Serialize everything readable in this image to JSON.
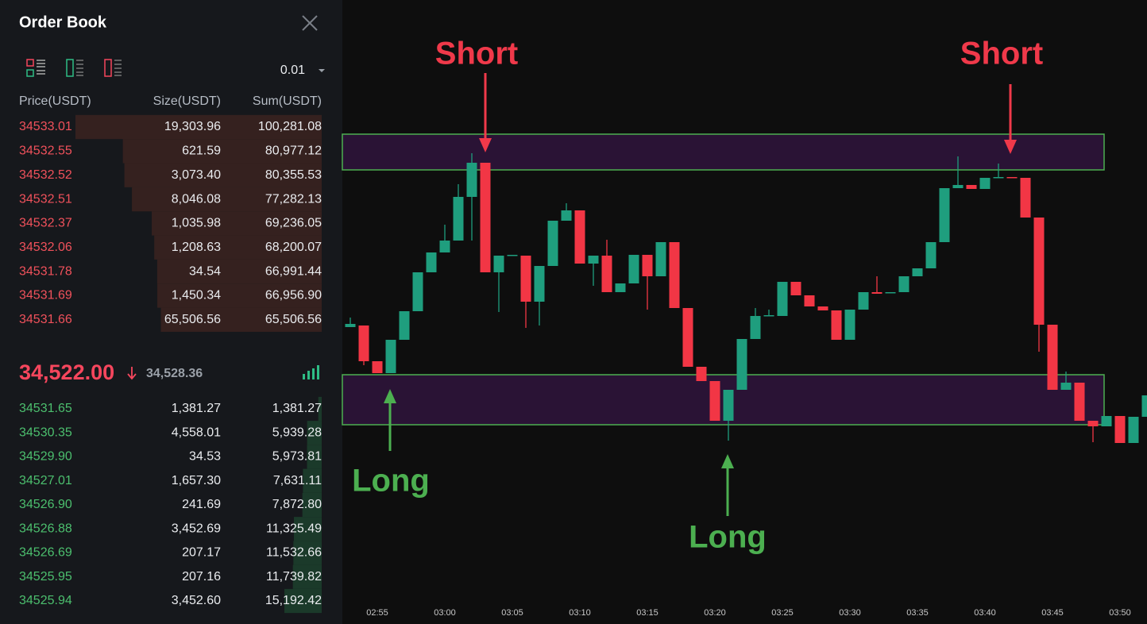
{
  "order_book": {
    "title": "Order Book",
    "precision": "0.01",
    "headers": [
      "Price(USDT)",
      "Size(USDT)",
      "Sum(USDT)"
    ],
    "asks": [
      [
        "34533.01",
        "19,303.96",
        "100,281.08"
      ],
      [
        "34532.55",
        "621.59",
        "80,977.12"
      ],
      [
        "34532.52",
        "3,073.40",
        "80,355.53"
      ],
      [
        "34532.51",
        "8,046.08",
        "77,282.13"
      ],
      [
        "34532.37",
        "1,035.98",
        "69,236.05"
      ],
      [
        "34532.06",
        "1,208.63",
        "68,200.07"
      ],
      [
        "34531.78",
        "34.54",
        "66,991.44"
      ],
      [
        "34531.69",
        "1,450.34",
        "66,956.90"
      ],
      [
        "34531.66",
        "65,506.56",
        "65,506.56"
      ]
    ],
    "last_price": "34,522.00",
    "mark_price": "34,528.36",
    "bids": [
      [
        "34531.65",
        "1,381.27",
        "1,381.27"
      ],
      [
        "34530.35",
        "4,558.01",
        "5,939.28"
      ],
      [
        "34529.90",
        "34.53",
        "5,973.81"
      ],
      [
        "34527.01",
        "1,657.30",
        "7,631.11"
      ],
      [
        "34526.90",
        "241.69",
        "7,872.80"
      ],
      [
        "34526.88",
        "3,452.69",
        "11,325.49"
      ],
      [
        "34526.69",
        "207.17",
        "11,532.66"
      ],
      [
        "34525.95",
        "207.16",
        "11,739.82"
      ],
      [
        "34525.94",
        "3,452.60",
        "15,192.42"
      ]
    ]
  },
  "chart_data": {
    "type": "candlestick",
    "categories": [
      null,
      null,
      "02:55",
      null,
      null,
      null,
      null,
      "03:00",
      null,
      null,
      null,
      null,
      "03:05",
      null,
      null,
      null,
      null,
      "03:10",
      null,
      null,
      null,
      null,
      "03:15",
      null,
      null,
      null,
      null,
      "03:20",
      null,
      null,
      null,
      null,
      "03:25",
      null,
      null,
      null,
      null,
      "03:30",
      null,
      null,
      null,
      null,
      "03:35",
      null,
      null,
      null,
      null,
      "03:40",
      null,
      null,
      null,
      null,
      "03:45",
      null,
      null,
      null,
      null,
      "03:50",
      null,
      null
    ],
    "open": [
      34528.8,
      34529.0,
      34524.5,
      34523.0,
      34527.2,
      34530.8,
      34535.7,
      34538.2,
      34539.7,
      34545.2,
      34549.5,
      34535.7,
      34537.8,
      34537.8,
      34532.0,
      34536.5,
      34542.2,
      34543.5,
      34536.8,
      34537.8,
      34533.2,
      34534.3,
      34537.9,
      34535.2,
      34539.5,
      34531.2,
      34523.8,
      34522.0,
      34517.0,
      34520.9,
      34527.3,
      34530.2,
      34530.2,
      34534.5,
      34532.8,
      34531.4,
      34530.9,
      34527.2,
      34531.0,
      34533.2,
      34533.1,
      34533.2,
      34535.2,
      34536.2,
      34539.5,
      34546.3,
      34546.7,
      34546.2,
      34547.6,
      34547.7,
      34547.6,
      34542.6,
      34529.1,
      34520.9,
      34521.8,
      34517.0,
      34516.3,
      34517.6,
      34514.2,
      34517.5
    ],
    "high": [
      34530.0,
      34529.0,
      34524.5,
      34527.2,
      34530.8,
      34535.7,
      34538.2,
      34541.7,
      34546.8,
      34550.7,
      34549.5,
      34537.8,
      34537.9,
      34537.8,
      34536.5,
      34542.2,
      34544.4,
      34543.5,
      34537.8,
      34539.8,
      34534.3,
      34537.9,
      34537.9,
      34539.5,
      34539.5,
      34531.2,
      34523.8,
      34522.0,
      34520.9,
      34527.3,
      34531.2,
      34531.0,
      34534.5,
      34534.5,
      34532.8,
      34531.4,
      34530.9,
      34531.0,
      34533.2,
      34535.2,
      34533.2,
      34535.2,
      34536.2,
      34539.5,
      34546.3,
      34550.3,
      34546.7,
      34547.6,
      34549.4,
      34547.7,
      34547.6,
      34542.6,
      34529.1,
      34523.2,
      34521.8,
      34517.0,
      34517.6,
      34517.6,
      34517.5,
      34520.2
    ],
    "low": [
      34528.8,
      34524.0,
      34523.0,
      34523.0,
      34527.2,
      34530.8,
      34535.7,
      34538.2,
      34539.7,
      34539.7,
      34535.7,
      34530.7,
      34537.8,
      34528.7,
      34529.0,
      34536.5,
      34542.2,
      34536.8,
      34534.0,
      34533.2,
      34533.2,
      34534.3,
      34531.0,
      34535.2,
      34531.2,
      34523.8,
      34522.0,
      34517.0,
      34514.5,
      34520.9,
      34527.3,
      34530.2,
      34530.2,
      34532.8,
      34531.4,
      34530.9,
      34527.2,
      34527.2,
      34531.0,
      34533.0,
      34533.1,
      34533.2,
      34535.2,
      34536.2,
      34539.5,
      34546.3,
      34546.2,
      34546.2,
      34547.6,
      34547.6,
      34542.6,
      34525.7,
      34520.9,
      34520.9,
      34517.0,
      34514.3,
      34516.3,
      34514.2,
      34514.2,
      34517.5
    ],
    "close": [
      34529.2,
      34524.5,
      34523.0,
      34527.2,
      34530.8,
      34535.7,
      34538.2,
      34539.7,
      34545.2,
      34549.5,
      34535.7,
      34537.8,
      34537.9,
      34532.0,
      34536.5,
      34542.2,
      34543.5,
      34536.8,
      34537.8,
      34533.2,
      34534.3,
      34537.9,
      34535.2,
      34539.5,
      34531.2,
      34523.8,
      34522.0,
      34517.0,
      34520.9,
      34527.3,
      34530.2,
      34530.3,
      34534.5,
      34532.8,
      34531.4,
      34530.9,
      34527.2,
      34531.0,
      34533.2,
      34533.0,
      34533.2,
      34535.2,
      34536.2,
      34539.5,
      34546.3,
      34546.7,
      34546.2,
      34547.6,
      34547.7,
      34547.6,
      34542.6,
      34529.1,
      34520.9,
      34521.8,
      34517.0,
      34516.3,
      34517.6,
      34514.2,
      34517.5,
      34520.2
    ],
    "ylim": [
      34494,
      34570
    ],
    "up_color": "#1f9e7e",
    "down_color": "#f23645",
    "zones": [
      {
        "low": 34548.6,
        "high": 34553.1
      },
      {
        "low": 34516.5,
        "high": 34522.8
      }
    ],
    "annotations": [
      {
        "text": "Short",
        "color": "#f0394a"
      },
      {
        "text": "Short",
        "color": "#f0394a"
      },
      {
        "text": "Long",
        "color": "#4caf50"
      },
      {
        "text": "Long",
        "color": "#4caf50"
      }
    ]
  }
}
